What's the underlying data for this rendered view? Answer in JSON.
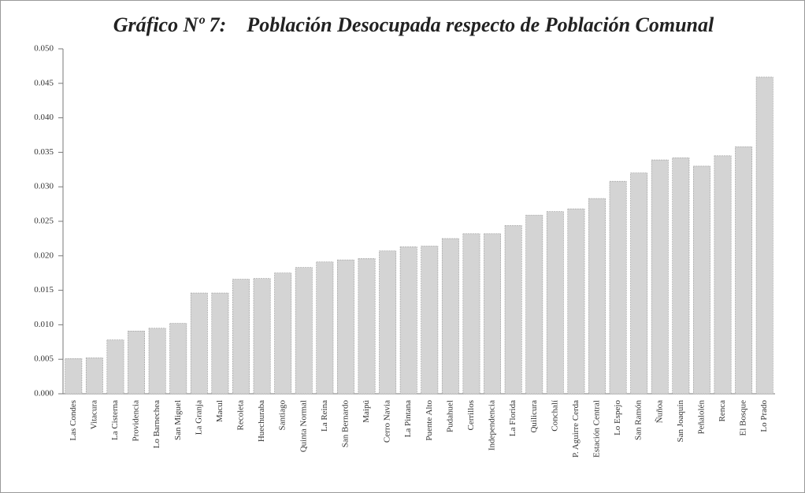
{
  "chart_data": {
    "type": "bar",
    "title": "Gráfico Nº 7:    Población Desocupada respecto de Población Comunal",
    "categories": [
      "Las Condes",
      "Vitacura",
      "La Cisterna",
      "Providencia",
      "Lo Barnechea",
      "San Miguel",
      "La Granja",
      "Macul",
      "Recoleta",
      "Huechuraba",
      "Santiago",
      "Quinta Normal",
      "La Reina",
      "San Bernardo",
      "Maipú",
      "Cerro Navia",
      "La Pintana",
      "Puente Alto",
      "Pudahuel",
      "Cerrillos",
      "Independencia",
      "La Florida",
      "Quilicura",
      "Conchalí",
      "P. Aguirre Cerda",
      "Estación Central",
      "Lo Espejo",
      "San Ramón",
      "Ñuñoa",
      "San Joaquín",
      "Peñalolén",
      "Renca",
      "El Bosque",
      "Lo Prado"
    ],
    "values": [
      0.0051,
      0.0052,
      0.0078,
      0.0091,
      0.0095,
      0.0102,
      0.0146,
      0.0146,
      0.0166,
      0.0167,
      0.0175,
      0.0183,
      0.0191,
      0.0194,
      0.0196,
      0.0207,
      0.0213,
      0.0214,
      0.0225,
      0.0232,
      0.0232,
      0.0244,
      0.0259,
      0.0264,
      0.0268,
      0.0283,
      0.0308,
      0.032,
      0.0339,
      0.0342,
      0.033,
      0.0345,
      0.0358,
      0.0459
    ],
    "color": "#d4d4d4",
    "ylim": [
      0,
      0.05
    ],
    "yticks": [
      {
        "value": 0,
        "label": "0.000"
      },
      {
        "value": 0.005,
        "label": "0.005"
      },
      {
        "value": 0.01,
        "label": "0.010"
      },
      {
        "value": 0.015,
        "label": "0.015"
      },
      {
        "value": 0.02,
        "label": "0.020"
      },
      {
        "value": 0.025,
        "label": "0.025"
      },
      {
        "value": 0.03,
        "label": "0.030"
      },
      {
        "value": 0.035,
        "label": "0.035"
      },
      {
        "value": 0.04,
        "label": "0.040"
      },
      {
        "value": 0.045,
        "label": "0.045"
      },
      {
        "value": 0.05,
        "label": "0.050"
      }
    ],
    "grid": false
  }
}
